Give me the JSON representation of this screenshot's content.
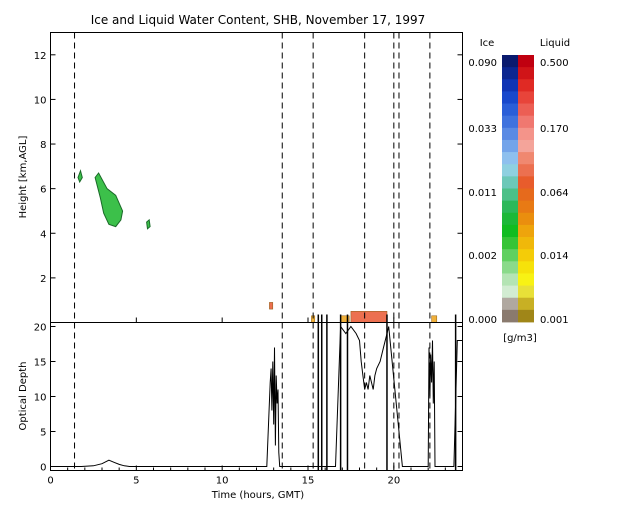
{
  "chart_data": {
    "title": "Ice and Liquid Water Content, SHB, November 17, 1997",
    "xlabel": "Time (hours, GMT)",
    "xlim": [
      0,
      24
    ],
    "x_ticks": [
      "0",
      "5",
      "10",
      "15",
      "20"
    ],
    "top_panel": {
      "type": "heatmap",
      "ylabel": "Height [km,AGL]",
      "ylim": [
        0,
        13
      ],
      "y_ticks": [
        "2",
        "4",
        "6",
        "8",
        "10",
        "12"
      ],
      "ice_cloud_regions": [
        {
          "x": [
            1.6,
            1.75,
            1.85,
            1.7
          ],
          "y": [
            6.5,
            6.8,
            6.5,
            6.3
          ]
        },
        {
          "x": [
            2.6,
            2.8,
            3.3,
            3.8,
            4.2,
            4.1,
            3.8,
            3.4,
            3.1,
            2.9
          ],
          "y": [
            6.5,
            6.7,
            6.0,
            5.7,
            5.0,
            4.6,
            4.3,
            4.4,
            4.9,
            5.6
          ]
        },
        {
          "x": [
            5.6,
            5.75,
            5.8,
            5.65
          ],
          "y": [
            4.5,
            4.6,
            4.3,
            4.2
          ]
        }
      ],
      "liquid_cloud_regions": [
        {
          "x": [
            12.75,
            12.95
          ],
          "y": [
            0.6,
            0.9
          ]
        },
        {
          "x": [
            15.2,
            15.4
          ],
          "y": [
            0.0,
            0.3
          ]
        },
        {
          "x": [
            16.9,
            17.4
          ],
          "y": [
            0.0,
            0.3
          ]
        },
        {
          "x": [
            17.5,
            19.6
          ],
          "y": [
            0.0,
            0.5
          ]
        },
        {
          "x": [
            22.2,
            22.5
          ],
          "y": [
            0.0,
            0.3
          ]
        }
      ]
    },
    "bottom_panel": {
      "type": "line",
      "ylabel": "Optical Depth",
      "ylim": [
        0,
        20
      ],
      "y_ticks": [
        "0",
        "5",
        "10",
        "15",
        "20"
      ],
      "series": [
        {
          "x": [
            0,
            1.8,
            2.5,
            3,
            3.4,
            3.7,
            4,
            4.3,
            4.6,
            6,
            9,
            12.6,
            12.8,
            12.85,
            12.9,
            12.95,
            13.0,
            13.05,
            13.1,
            13.15,
            13.2,
            13.25,
            13.3,
            13.35,
            13.4,
            13.5,
            13.8,
            16.6,
            16.9,
            17.2,
            17.5,
            17.8,
            18.0,
            18.1,
            18.2,
            18.3,
            18.4,
            18.5,
            18.6,
            18.7,
            18.8,
            18.9,
            19.0,
            19.2,
            19.4,
            19.6,
            19.7,
            20.5,
            22.0,
            22.05,
            22.1,
            22.15,
            22.2,
            22.25,
            22.3,
            22.35,
            22.4,
            22.5,
            23.0,
            23.5,
            23.7,
            24
          ],
          "y": [
            0,
            0,
            0.1,
            0.4,
            0.9,
            0.6,
            0.3,
            0.1,
            0,
            0,
            0,
            0,
            12,
            14,
            8,
            15,
            6,
            17,
            3,
            13,
            9,
            11,
            2,
            0,
            0,
            0,
            0,
            0,
            20,
            19,
            20,
            19,
            18,
            15,
            13,
            11,
            12,
            11,
            13,
            12,
            11,
            13,
            14,
            15,
            17,
            19,
            20,
            0,
            0,
            17,
            10,
            16,
            12,
            18,
            9,
            15,
            0,
            0,
            0,
            0,
            18,
            18
          ]
        }
      ]
    },
    "dashed_lines_x": [
      1.4,
      13.5,
      15.3,
      18.3,
      20.0,
      20.3,
      22.1
    ],
    "solid_lines_x": [
      15.6,
      15.8,
      16.1,
      16.9,
      17.3,
      19.6,
      23.6
    ],
    "colorbar": {
      "ice_label": "Ice",
      "liquid_label": "Liquid",
      "unit": "[g/m3]",
      "ice_ticks": [
        "0.090",
        "0.033",
        "0.011",
        "0.002",
        "0.000"
      ],
      "liquid_ticks": [
        "0.500",
        "0.170",
        "0.064",
        "0.014",
        "0.001"
      ],
      "ice_colors": [
        "#0a1a6e",
        "#0c2690",
        "#0f34b4",
        "#1848cc",
        "#2a5ed8",
        "#3f72de",
        "#5a8ae4",
        "#73a4ea",
        "#8ec0ee",
        "#8ed0e0",
        "#6cc8b8",
        "#4cc088",
        "#2cb85a",
        "#1cb838",
        "#10bc20",
        "#36c436",
        "#60d060",
        "#8ada8a",
        "#b4e4b4",
        "#d2ecd2",
        "#b0a8a0",
        "#8a7a6e"
      ],
      "liquid_colors": [
        "#c00010",
        "#d01418",
        "#e02a24",
        "#e8443a",
        "#ec5e54",
        "#f07870",
        "#f4948a",
        "#f4a49a",
        "#f08870",
        "#ec7050",
        "#e85c2c",
        "#e66a1c",
        "#e87a14",
        "#ea8e0e",
        "#eea40c",
        "#f0b80a",
        "#f4cc08",
        "#f6e20a",
        "#f8f214",
        "#e8e038",
        "#c8b024",
        "#a08618"
      ]
    }
  }
}
